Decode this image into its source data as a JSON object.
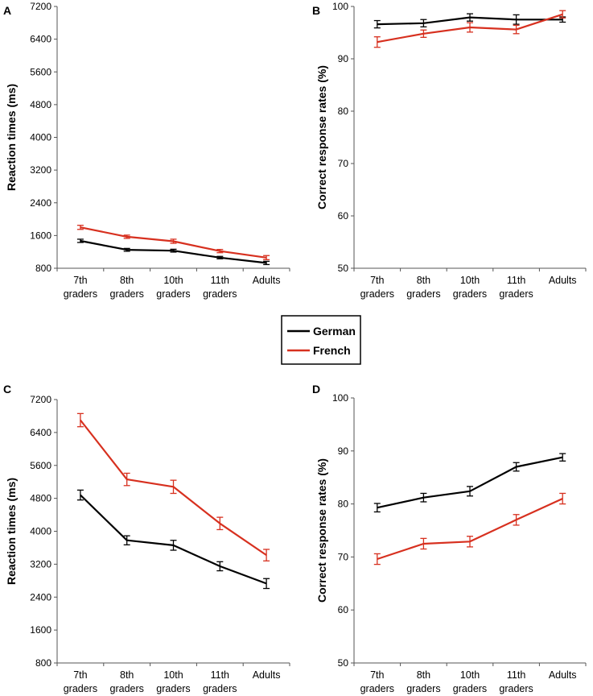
{
  "legend": [
    {
      "name": "German",
      "color": "#000000"
    },
    {
      "name": "French",
      "color": "#d7301f"
    }
  ],
  "chart_data": [
    {
      "panel": "A",
      "type": "line",
      "ylabel": "Reaction times (ms)",
      "ylim": [
        800,
        7200
      ],
      "yticks": [
        "800",
        "1600",
        "2400",
        "3200",
        "4000",
        "4800",
        "5600",
        "6400",
        "7200"
      ],
      "categories": [
        [
          "7th",
          "graders"
        ],
        [
          "8th",
          "graders"
        ],
        [
          "10th",
          "graders"
        ],
        [
          "11th",
          "graders"
        ],
        [
          "Adults"
        ]
      ],
      "series": [
        {
          "name": "German",
          "color": "#000000",
          "values": [
            1470,
            1250,
            1230,
            1060,
            930
          ],
          "errors": [
            40,
            35,
            35,
            30,
            40
          ]
        },
        {
          "name": "French",
          "color": "#d7301f",
          "values": [
            1800,
            1570,
            1460,
            1220,
            1060
          ],
          "errors": [
            50,
            40,
            50,
            40,
            50
          ]
        }
      ]
    },
    {
      "panel": "B",
      "type": "line",
      "ylabel": "Correct response rates (%)",
      "ylim": [
        50,
        100
      ],
      "yticks": [
        "50",
        "60",
        "70",
        "80",
        "90",
        "100"
      ],
      "categories": [
        [
          "7th",
          "graders"
        ],
        [
          "8th",
          "graders"
        ],
        [
          "10th",
          "graders"
        ],
        [
          "11th",
          "graders"
        ],
        [
          "Adults"
        ]
      ],
      "series": [
        {
          "name": "German",
          "color": "#000000",
          "values": [
            96.6,
            96.8,
            97.9,
            97.5,
            97.5
          ],
          "errors": [
            0.7,
            0.7,
            0.7,
            0.9,
            0.5
          ]
        },
        {
          "name": "French",
          "color": "#d7301f",
          "values": [
            93.2,
            94.8,
            96.0,
            95.6,
            98.5
          ],
          "errors": [
            1.0,
            0.7,
            0.9,
            0.8,
            0.7
          ]
        }
      ]
    },
    {
      "panel": "C",
      "type": "line",
      "ylabel": "Reaction times (ms)",
      "ylim": [
        800,
        7200
      ],
      "yticks": [
        "800",
        "1600",
        "2400",
        "3200",
        "4000",
        "4800",
        "5600",
        "6400",
        "7200"
      ],
      "categories": [
        [
          "7th",
          "graders"
        ],
        [
          "8th",
          "graders"
        ],
        [
          "10th",
          "graders"
        ],
        [
          "11th",
          "graders"
        ],
        [
          "Adults"
        ]
      ],
      "series": [
        {
          "name": "German",
          "color": "#000000",
          "values": [
            4880,
            3780,
            3660,
            3150,
            2730
          ],
          "errors": [
            120,
            110,
            120,
            110,
            120
          ]
        },
        {
          "name": "French",
          "color": "#d7301f",
          "values": [
            6700,
            5260,
            5080,
            4190,
            3420
          ],
          "errors": [
            160,
            150,
            160,
            150,
            140
          ]
        }
      ]
    },
    {
      "panel": "D",
      "type": "line",
      "ylabel": "Correct response rates (%)",
      "ylim": [
        50,
        100
      ],
      "yticks": [
        "50",
        "60",
        "70",
        "80",
        "90",
        "100"
      ],
      "categories": [
        [
          "7th",
          "graders"
        ],
        [
          "8th",
          "graders"
        ],
        [
          "10th",
          "graders"
        ],
        [
          "11th",
          "graders"
        ],
        [
          "Adults"
        ]
      ],
      "series": [
        {
          "name": "German",
          "color": "#000000",
          "values": [
            79.3,
            81.2,
            82.4,
            87.0,
            88.8
          ],
          "errors": [
            0.8,
            0.8,
            0.9,
            0.8,
            0.7
          ]
        },
        {
          "name": "French",
          "color": "#d7301f",
          "values": [
            69.6,
            72.5,
            72.9,
            77.0,
            81.0
          ],
          "errors": [
            1.0,
            1.0,
            1.0,
            1.0,
            1.0
          ]
        }
      ]
    }
  ]
}
